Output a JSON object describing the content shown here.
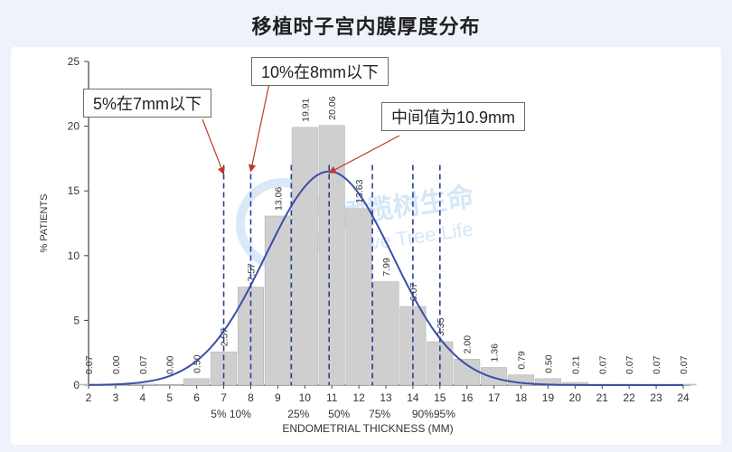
{
  "title": "移植时子宫内膜厚度分布",
  "watermark": {
    "cn": "橄榄树生命",
    "en": "Olive Tree Life"
  },
  "chart_data": {
    "type": "bar",
    "xlabel": "ENDOMETRIAL THICKNESS (MM)",
    "ylabel": "% PATIENTS",
    "ylim": [
      0,
      25
    ],
    "xlim": [
      2,
      24
    ],
    "y_ticks": [
      0,
      5,
      10,
      15,
      20,
      25
    ],
    "x_ticks": [
      2,
      3,
      4,
      5,
      6,
      7,
      8,
      9,
      10,
      11,
      12,
      13,
      14,
      15,
      16,
      17,
      18,
      19,
      20,
      21,
      22,
      23,
      24
    ],
    "bar_color": "#cfcfcf",
    "curve_color": "#3a4fa8",
    "line_color": "#2a3f9a",
    "bars": [
      {
        "x": 2,
        "value": 0.07,
        "label": "0.07"
      },
      {
        "x": 3,
        "value": 0.0,
        "label": "0.00"
      },
      {
        "x": 4,
        "value": 0.07,
        "label": "0.07"
      },
      {
        "x": 5,
        "value": 0.0,
        "label": "0.00"
      },
      {
        "x": 6,
        "value": 0.5,
        "label": "0.50"
      },
      {
        "x": 7,
        "value": 2.57,
        "label": "2.57"
      },
      {
        "x": 8,
        "value": 7.57,
        "label": "7.57"
      },
      {
        "x": 9,
        "value": 13.06,
        "label": "13.06"
      },
      {
        "x": 10,
        "value": 19.91,
        "label": "19.91"
      },
      {
        "x": 11,
        "value": 20.06,
        "label": "20.06"
      },
      {
        "x": 12,
        "value": 13.63,
        "label": "13.63"
      },
      {
        "x": 13,
        "value": 7.99,
        "label": "7.99"
      },
      {
        "x": 14,
        "value": 6.07,
        "label": "6.07"
      },
      {
        "x": 15,
        "value": 3.35,
        "label": "3.35"
      },
      {
        "x": 16,
        "value": 2.0,
        "label": "2.00"
      },
      {
        "x": 17,
        "value": 1.36,
        "label": "1.36"
      },
      {
        "x": 18,
        "value": 0.79,
        "label": "0.79"
      },
      {
        "x": 19,
        "value": 0.5,
        "label": "0.50"
      },
      {
        "x": 20,
        "value": 0.21,
        "label": "0.21"
      },
      {
        "x": 21,
        "value": 0.07,
        "label": "0.07"
      },
      {
        "x": 22,
        "value": 0.07,
        "label": "0.07"
      },
      {
        "x": 23,
        "value": 0.07,
        "label": "0.07"
      },
      {
        "x": 24,
        "value": 0.07,
        "label": "0.07"
      }
    ],
    "curve": {
      "mean": 10.9,
      "sd": 2.35,
      "peak": 16.5
    },
    "percentile_lines": [
      {
        "x": 7.0,
        "label": "5%"
      },
      {
        "x": 8.0,
        "label": "10%"
      },
      {
        "x": 9.5,
        "label": "25%"
      },
      {
        "x": 10.9,
        "label": "50%"
      },
      {
        "x": 12.5,
        "label": "75%"
      },
      {
        "x": 14.0,
        "label": "90%"
      },
      {
        "x": 15.0,
        "label": "95%"
      }
    ],
    "percentile_labels": [
      {
        "x": 7.0,
        "text": "5% 10%"
      },
      {
        "x": 9.5,
        "text": "25%"
      },
      {
        "x": 11.0,
        "text": "50%"
      },
      {
        "x": 12.5,
        "text": "75%"
      },
      {
        "x": 14.5,
        "text": "90%95%"
      }
    ],
    "annotations": [
      {
        "text": "5%在7mm以下",
        "target_x": 7.0,
        "target_y": 16.5
      },
      {
        "text": "10%在8mm以下",
        "target_x": 8.0,
        "target_y": 16.7
      },
      {
        "text": "中间值为10.9mm",
        "target_x": 10.9,
        "target_y": 16.6
      }
    ]
  }
}
